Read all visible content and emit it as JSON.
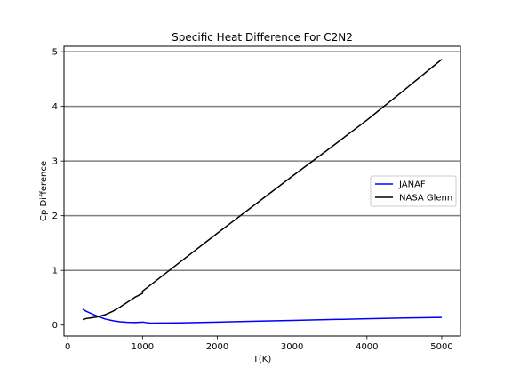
{
  "chart_data": {
    "type": "line",
    "title": "Specific Heat Difference For C2N2",
    "xlabel": "T(K)",
    "ylabel": "Cp Difference",
    "xlim": [
      -50,
      5250
    ],
    "ylim": [
      -0.2,
      5.1
    ],
    "xticks": [
      0,
      1000,
      2000,
      3000,
      4000,
      5000
    ],
    "yticks": [
      0,
      1,
      2,
      3,
      4,
      5
    ],
    "grid": "horizontal",
    "legend_position": "center-right",
    "series": [
      {
        "name": "JANAF",
        "color": "#0000ff",
        "x": [
          200,
          250,
          300,
          350,
          400,
          450,
          500,
          600,
          700,
          800,
          900,
          950,
          1000,
          1050,
          1100,
          1500,
          2000,
          2500,
          3000,
          3500,
          4000,
          4500,
          5000
        ],
        "y": [
          0.29,
          0.25,
          0.22,
          0.19,
          0.16,
          0.135,
          0.11,
          0.08,
          0.06,
          0.05,
          0.045,
          0.05,
          0.055,
          0.045,
          0.035,
          0.04,
          0.055,
          0.07,
          0.085,
          0.1,
          0.115,
          0.13,
          0.14
        ]
      },
      {
        "name": "NASA Glenn",
        "color": "#000000",
        "x": [
          200,
          250,
          300,
          400,
          500,
          600,
          700,
          800,
          900,
          1000,
          1000,
          1500,
          2000,
          2500,
          3000,
          3500,
          4000,
          4500,
          5000
        ],
        "y": [
          0.1,
          0.12,
          0.13,
          0.15,
          0.19,
          0.25,
          0.33,
          0.42,
          0.51,
          0.58,
          0.62,
          1.15,
          1.68,
          2.2,
          2.72,
          3.23,
          3.75,
          4.3,
          4.86
        ]
      }
    ]
  }
}
